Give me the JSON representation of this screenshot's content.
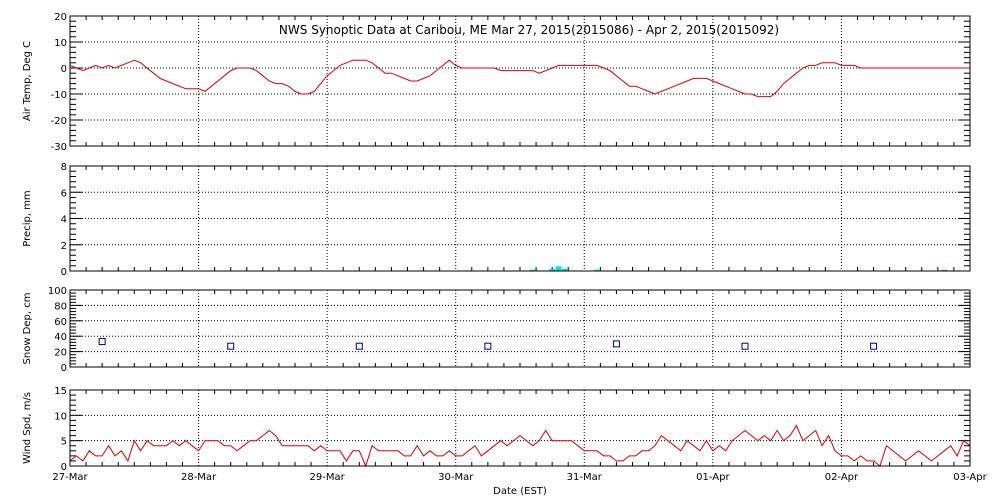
{
  "title": "NWS Synoptic Data at Caribou, ME   Mar 27, 2015(2015086) - Apr  2, 2015(2015092)",
  "xlabel": "Date (EST)",
  "x_tick_labels": [
    "27-Mar",
    "28-Mar",
    "29-Mar",
    "30-Mar",
    "31-Mar",
    "01-Apr",
    "02-Apr",
    "03-Apr"
  ],
  "colors": {
    "temp": "#dd0000",
    "precip": "#00e0e0",
    "snow": "#000080",
    "wind": "#dd0000",
    "axes": "#000000"
  },
  "chart_data": [
    {
      "type": "line",
      "ylabel": "Air Temp, Deg C",
      "ylim": [
        -30,
        20
      ],
      "yticks": [
        -30,
        -20,
        -10,
        0,
        10,
        20
      ],
      "grid": true,
      "x_unit": "days since 27-Mar 00:00 EST",
      "x": [
        0,
        0.05,
        0.1,
        0.15,
        0.2,
        0.25,
        0.3,
        0.35,
        0.4,
        0.45,
        0.5,
        0.55,
        0.6,
        0.65,
        0.7,
        0.75,
        0.8,
        0.85,
        0.9,
        0.95,
        1.0,
        1.05,
        1.1,
        1.15,
        1.2,
        1.25,
        1.3,
        1.35,
        1.4,
        1.45,
        1.5,
        1.55,
        1.6,
        1.65,
        1.7,
        1.75,
        1.8,
        1.85,
        1.9,
        1.95,
        2.0,
        2.05,
        2.1,
        2.15,
        2.2,
        2.25,
        2.3,
        2.35,
        2.4,
        2.45,
        2.5,
        2.55,
        2.6,
        2.65,
        2.7,
        2.75,
        2.8,
        2.85,
        2.9,
        2.95,
        3.0,
        3.05,
        3.1,
        3.15,
        3.2,
        3.25,
        3.3,
        3.35,
        3.4,
        3.45,
        3.5,
        3.55,
        3.6,
        3.65,
        3.7,
        3.75,
        3.8,
        3.85,
        3.9,
        3.95,
        4.0,
        4.05,
        4.1,
        4.15,
        4.2,
        4.25,
        4.3,
        4.35,
        4.4,
        4.45,
        4.5,
        4.55,
        4.6,
        4.65,
        4.7,
        4.75,
        4.8,
        4.85,
        4.9,
        4.95,
        5.0,
        5.05,
        5.1,
        5.15,
        5.2,
        5.25,
        5.3,
        5.35,
        5.4,
        5.45,
        5.5,
        5.55,
        5.6,
        5.65,
        5.7,
        5.75,
        5.8,
        5.85,
        5.9,
        5.95,
        6.0,
        6.05,
        6.1,
        6.15,
        6.2,
        6.25,
        6.3,
        6.35,
        6.4,
        6.45,
        6.5,
        6.55,
        6.6,
        6.65,
        6.7,
        6.75,
        6.8,
        6.85,
        6.9,
        6.95,
        7.0
      ],
      "series": [
        {
          "values": [
            1,
            0,
            -1,
            0,
            1,
            0,
            1,
            0,
            1,
            2,
            3,
            2,
            0,
            -2,
            -4,
            -5,
            -6,
            -7,
            -8,
            -8,
            -8,
            -9,
            -7,
            -5,
            -3,
            -1,
            0,
            0,
            0,
            -1,
            -3,
            -5,
            -6,
            -6,
            -7,
            -9,
            -10,
            -10,
            -9,
            -6,
            -3,
            -1,
            1,
            2,
            3,
            3,
            3,
            2,
            0,
            -2,
            -2,
            -3,
            -4,
            -5,
            -5,
            -4,
            -3,
            -1,
            1,
            3,
            1,
            0,
            0,
            0,
            0,
            0,
            0,
            -1,
            -1,
            -1,
            -1,
            -1,
            -1,
            -2,
            -1,
            0,
            1,
            1,
            1,
            1,
            1,
            1,
            1,
            0,
            -1,
            -3,
            -5,
            -7,
            -7,
            -8,
            -9,
            -10,
            -9,
            -8,
            -7,
            -6,
            -5,
            -4,
            -4,
            -4,
            -5,
            -6,
            -7,
            -8,
            -9,
            -10,
            -10,
            -11,
            -11,
            -11,
            -9,
            -6,
            -4,
            -2,
            0,
            1,
            1,
            2,
            2,
            2,
            1,
            1,
            1,
            0,
            0,
            0,
            0,
            0,
            0,
            0,
            0,
            0,
            0,
            0,
            0,
            0,
            0,
            0,
            0,
            0,
            0
          ]
        }
      ]
    },
    {
      "type": "bar",
      "ylabel": "Precip, mm",
      "ylim": [
        0,
        8
      ],
      "yticks": [
        0,
        2,
        4,
        6,
        8
      ],
      "grid": true,
      "x_unit": "days since 27-Mar 00:00 EST",
      "x": [
        3.6,
        3.75,
        3.8,
        3.85,
        4.1,
        6.8
      ],
      "values": [
        0.1,
        0.15,
        0.35,
        0.15,
        0.1,
        0.1
      ]
    },
    {
      "type": "scatter",
      "ylabel": "Snow Dep, cm",
      "ylim": [
        0,
        100
      ],
      "yticks": [
        0,
        20,
        40,
        60,
        80,
        100
      ],
      "grid": true,
      "x_unit": "days since 27-Mar 00:00 EST",
      "x": [
        0.25,
        1.25,
        2.25,
        3.25,
        4.25,
        5.25,
        6.25
      ],
      "values": [
        33,
        27,
        27,
        27,
        30,
        27,
        27
      ]
    },
    {
      "type": "line",
      "ylabel": "Wind Spd, m/s",
      "ylim": [
        0,
        15
      ],
      "yticks": [
        0,
        5,
        10,
        15
      ],
      "grid": true,
      "x_unit": "days since 27-Mar 00:00 EST",
      "x": [
        0,
        0.05,
        0.1,
        0.15,
        0.2,
        0.25,
        0.3,
        0.35,
        0.4,
        0.45,
        0.5,
        0.55,
        0.6,
        0.65,
        0.7,
        0.75,
        0.8,
        0.85,
        0.9,
        0.95,
        1.0,
        1.05,
        1.1,
        1.15,
        1.2,
        1.25,
        1.3,
        1.35,
        1.4,
        1.45,
        1.5,
        1.55,
        1.6,
        1.65,
        1.7,
        1.75,
        1.8,
        1.85,
        1.9,
        1.95,
        2.0,
        2.05,
        2.1,
        2.15,
        2.2,
        2.25,
        2.3,
        2.35,
        2.4,
        2.45,
        2.5,
        2.55,
        2.6,
        2.65,
        2.7,
        2.75,
        2.8,
        2.85,
        2.9,
        2.95,
        3.0,
        3.05,
        3.1,
        3.15,
        3.2,
        3.25,
        3.3,
        3.35,
        3.4,
        3.45,
        3.5,
        3.55,
        3.6,
        3.65,
        3.7,
        3.75,
        3.8,
        3.85,
        3.9,
        3.95,
        4.0,
        4.05,
        4.1,
        4.15,
        4.2,
        4.25,
        4.3,
        4.35,
        4.4,
        4.45,
        4.5,
        4.55,
        4.6,
        4.65,
        4.7,
        4.75,
        4.8,
        4.85,
        4.9,
        4.95,
        5.0,
        5.05,
        5.1,
        5.15,
        5.2,
        5.25,
        5.3,
        5.35,
        5.4,
        5.45,
        5.5,
        5.55,
        5.6,
        5.65,
        5.7,
        5.75,
        5.8,
        5.85,
        5.9,
        5.95,
        6.0,
        6.05,
        6.1,
        6.15,
        6.2,
        6.25,
        6.3,
        6.35,
        6.4,
        6.45,
        6.5,
        6.55,
        6.6,
        6.65,
        6.7,
        6.75,
        6.8,
        6.85,
        6.9,
        6.95,
        7.0
      ],
      "series": [
        {
          "values": [
            1,
            2,
            1,
            3,
            2,
            2,
            4,
            2,
            3,
            1,
            5,
            3,
            5,
            4,
            4,
            4,
            5,
            4,
            5,
            4,
            3,
            5,
            5,
            5,
            4,
            4,
            3,
            4,
            5,
            5,
            6,
            7,
            6,
            4,
            4,
            4,
            4,
            4,
            3,
            4,
            3,
            3,
            3,
            1,
            3,
            3,
            0,
            4,
            3,
            3,
            3,
            3,
            2,
            2,
            4,
            2,
            3,
            2,
            2,
            3,
            2,
            2,
            3,
            4,
            2,
            3,
            4,
            5,
            4,
            5,
            6,
            5,
            4,
            5,
            7,
            5,
            5,
            5,
            5,
            4,
            3,
            3,
            3,
            2,
            2,
            1,
            1,
            2,
            2,
            3,
            3,
            4,
            6,
            5,
            4,
            3,
            5,
            4,
            3,
            5,
            3,
            4,
            3,
            5,
            6,
            7,
            6,
            5,
            6,
            5,
            7,
            5,
            6,
            8,
            5,
            6,
            7,
            4,
            6,
            3,
            2,
            2,
            1,
            2,
            1,
            1,
            0,
            4,
            3,
            2,
            1,
            2,
            3,
            2,
            1,
            2,
            3,
            4,
            2,
            5,
            4
          ]
        }
      ]
    }
  ]
}
